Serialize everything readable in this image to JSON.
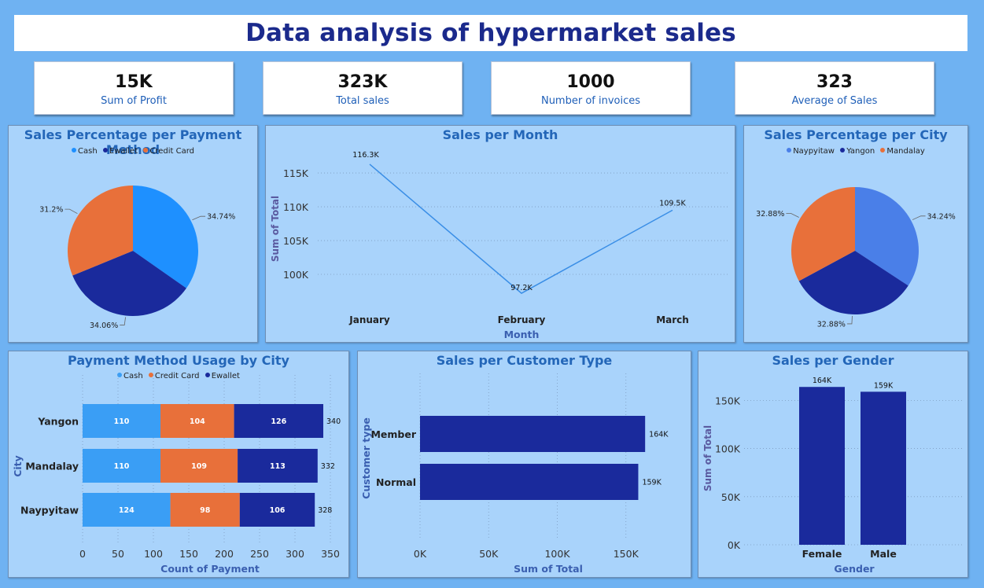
{
  "page_title": "Data analysis of hypermarket sales",
  "kpis": [
    {
      "value": "15K",
      "label": "Sum of Profit"
    },
    {
      "value": "323K",
      "label": "Total sales"
    },
    {
      "value": "1000",
      "label": "Number of invoices"
    },
    {
      "value": "323",
      "label": "Average of Sales"
    }
  ],
  "colors": {
    "background": "#6fb2f2",
    "panel": "#a9d3fb",
    "title_text": "#1b2a8c",
    "panel_title": "#2366b8",
    "light_blue": "#1e90ff",
    "dark_blue": "#1a2a9c",
    "orange": "#e8703a",
    "line": "#3a8ee6"
  },
  "chart_data": [
    {
      "id": "payment_pie",
      "type": "pie",
      "title": "Sales Percentage per Payment Method",
      "legend": [
        "Cash",
        "Ewallet",
        "Credit Card"
      ],
      "slices": [
        {
          "name": "Cash",
          "value": 34.74,
          "label": "34.74%",
          "color": "#1e90ff"
        },
        {
          "name": "Ewallet",
          "value": 34.06,
          "label": "34.06%",
          "color": "#1a2a9c"
        },
        {
          "name": "Credit Card",
          "value": 31.2,
          "label": "31.2%",
          "color": "#e8703a"
        }
      ]
    },
    {
      "id": "month_line",
      "type": "line",
      "title": "Sales per Month",
      "xlabel": "Month",
      "ylabel": "Sum of Total",
      "categories": [
        "January",
        "February",
        "March"
      ],
      "values": [
        116300,
        97200,
        109500
      ],
      "data_labels": [
        "116.3K",
        "97.2K",
        "109.5K"
      ],
      "yticks": [
        100000,
        105000,
        110000,
        115000
      ],
      "ytick_labels": [
        "100K",
        "105K",
        "110K",
        "115K"
      ],
      "ylim": [
        95000,
        118500
      ],
      "grid": true
    },
    {
      "id": "city_pie",
      "type": "pie",
      "title": "Sales Percentage per City",
      "legend": [
        "Naypyitaw",
        "Yangon",
        "Mandalay"
      ],
      "slices": [
        {
          "name": "Naypyitaw",
          "value": 34.24,
          "label": "34.24%",
          "color": "#4a7fe8"
        },
        {
          "name": "Yangon",
          "value": 32.88,
          "label": "32.88%",
          "color": "#1a2a9c"
        },
        {
          "name": "Mandalay",
          "value": 32.88,
          "label": "32.88%",
          "color": "#e8703a"
        }
      ]
    },
    {
      "id": "payment_city_bar",
      "type": "bar",
      "orientation": "horizontal",
      "stacked": true,
      "title": "Payment Method Usage by City",
      "xlabel": "Count of Payment",
      "ylabel": "City",
      "categories": [
        "Yangon",
        "Mandalay",
        "Naypyitaw"
      ],
      "series": [
        {
          "name": "Cash",
          "values": [
            110,
            110,
            124
          ],
          "color": "#3a9ef5"
        },
        {
          "name": "Credit Card",
          "values": [
            104,
            109,
            98
          ],
          "color": "#e8703a"
        },
        {
          "name": "Ewallet",
          "values": [
            126,
            113,
            106
          ],
          "color": "#1a2a9c"
        }
      ],
      "totals": [
        340,
        332,
        328
      ],
      "xticks": [
        0,
        50,
        100,
        150,
        200,
        250,
        300,
        350
      ],
      "xlim": [
        0,
        350
      ]
    },
    {
      "id": "customer_bar",
      "type": "bar",
      "orientation": "horizontal",
      "title": "Sales per Customer Type",
      "xlabel": "Sum of Total",
      "ylabel": "Customer type",
      "categories": [
        "Member",
        "Normal"
      ],
      "values": [
        164000,
        159000
      ],
      "data_labels": [
        "164K",
        "159K"
      ],
      "xticks": [
        0,
        50000,
        100000,
        150000
      ],
      "xtick_labels": [
        "0K",
        "50K",
        "100K",
        "150K"
      ],
      "xlim": [
        0,
        200000
      ],
      "color": "#1a2a9c"
    },
    {
      "id": "gender_bar",
      "type": "bar",
      "title": "Sales per Gender",
      "xlabel": "Gender",
      "ylabel": "Sum of Total",
      "categories": [
        "Female",
        "Male"
      ],
      "values": [
        164000,
        159000
      ],
      "data_labels": [
        "164K",
        "159K"
      ],
      "yticks": [
        0,
        50000,
        100000,
        150000
      ],
      "ytick_labels": [
        "0K",
        "50K",
        "100K",
        "150K"
      ],
      "ylim": [
        0,
        165000
      ],
      "color": "#1a2a9c"
    }
  ]
}
